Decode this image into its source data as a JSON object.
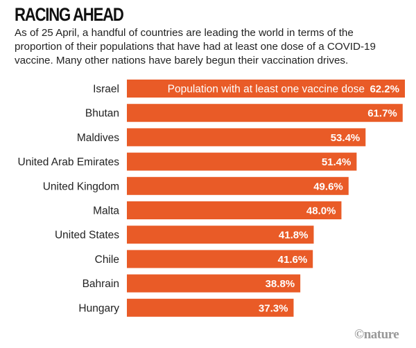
{
  "chart_data": {
    "type": "bar",
    "orientation": "horizontal",
    "title": "RACING AHEAD",
    "subtitle": "As of 25 April, a handful of countries are leading the world in terms of the proportion of their populations that have had at least one dose of a COVID-19 vaccine. Many other nations have barely begun their vaccination drives.",
    "series_label": "Population with at least one vaccine dose",
    "categories": [
      "Israel",
      "Bhutan",
      "Maldives",
      "United Arab Emirates",
      "United Kingdom",
      "Malta",
      "United States",
      "Chile",
      "Bahrain",
      "Hungary"
    ],
    "values": [
      62.2,
      61.7,
      53.4,
      51.4,
      49.6,
      48.0,
      41.8,
      41.6,
      38.8,
      37.3
    ],
    "value_labels": [
      "62.2%",
      "61.7%",
      "53.4%",
      "51.4%",
      "49.6%",
      "48.0%",
      "41.8%",
      "41.6%",
      "38.8%",
      "37.3%"
    ],
    "unit": "%",
    "xlim": [
      0,
      62.2
    ],
    "bar_color": "#e95b27",
    "grid": false
  },
  "credit": "©nature"
}
